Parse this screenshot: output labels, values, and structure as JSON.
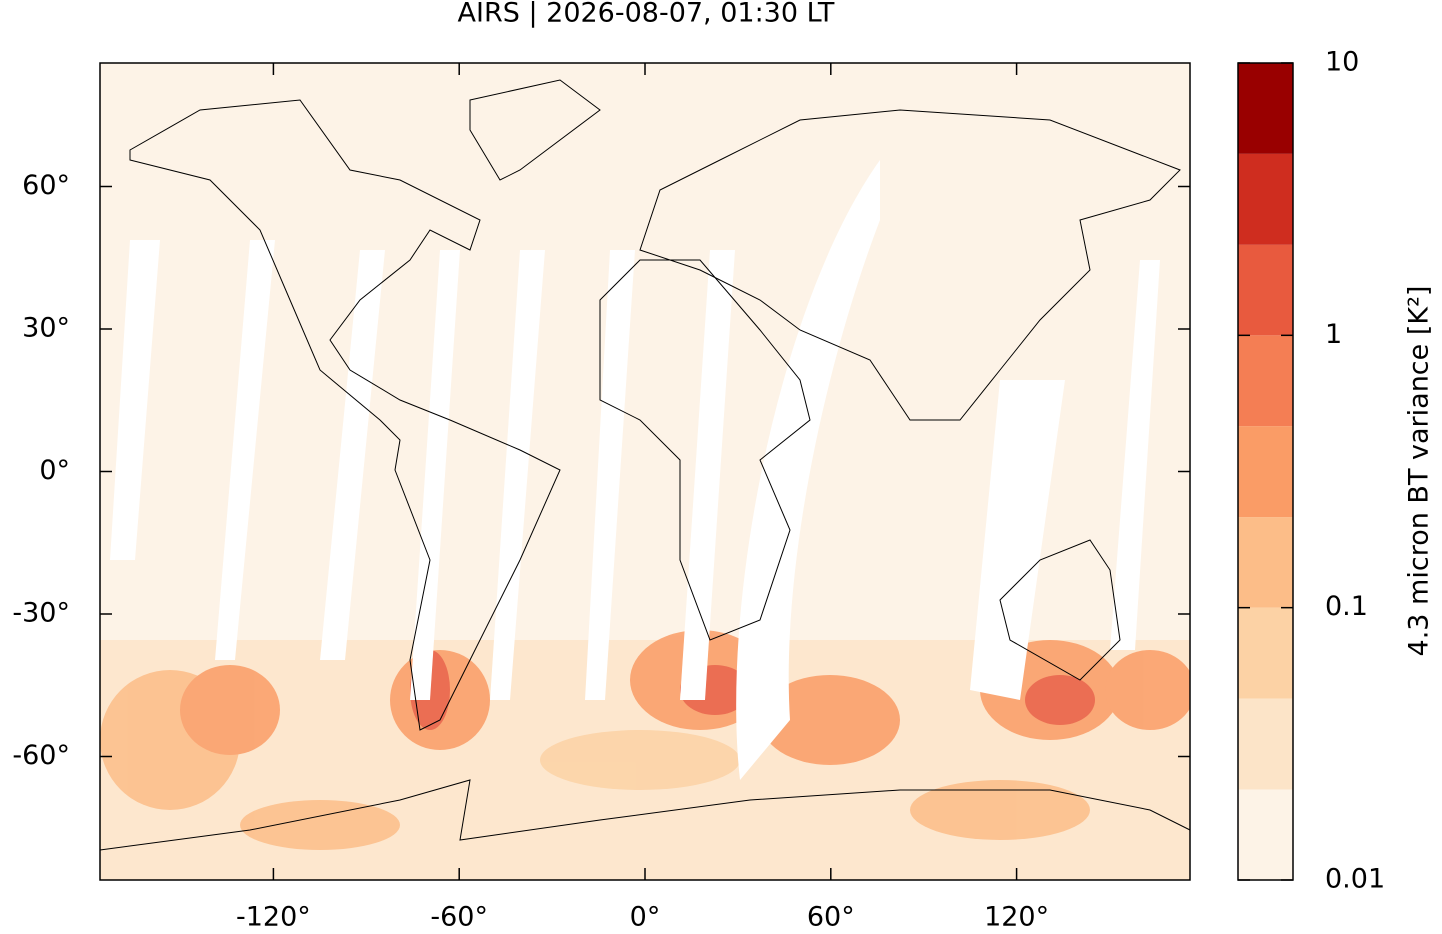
{
  "chart_data": {
    "type": "map",
    "title": "AIRS | 2026-08-07, 01:30 LT",
    "xlim": [
      -176,
      176
    ],
    "ylim": [
      -86,
      86
    ],
    "xticks": [
      {
        "value": -120,
        "label": "-120°"
      },
      {
        "value": -60,
        "label": "-60°"
      },
      {
        "value": 0,
        "label": "0°"
      },
      {
        "value": 60,
        "label": "60°"
      },
      {
        "value": 120,
        "label": "120°"
      }
    ],
    "yticks": [
      {
        "value": 60,
        "label": "60°"
      },
      {
        "value": 30,
        "label": "30°"
      },
      {
        "value": 0,
        "label": "0°"
      },
      {
        "value": -30,
        "label": "-30°"
      },
      {
        "value": -60,
        "label": "-60°"
      }
    ],
    "colorbar": {
      "label": "4.3 micron BT variance [K²]",
      "scale": "log",
      "lim": [
        0.01,
        10
      ],
      "ticks": [
        10,
        1,
        0.1,
        0.01
      ],
      "levels": [
        0.01,
        0.0215,
        0.0464,
        0.1,
        0.215,
        0.464,
        1,
        2.15,
        4.64,
        10
      ],
      "colors": [
        "#fdf3e7",
        "#fce4c8",
        "#fcd2a5",
        "#fcbd88",
        "#fa9c66",
        "#f47e54",
        "#e85a3e",
        "#cf2d1f",
        "#990000"
      ]
    }
  }
}
